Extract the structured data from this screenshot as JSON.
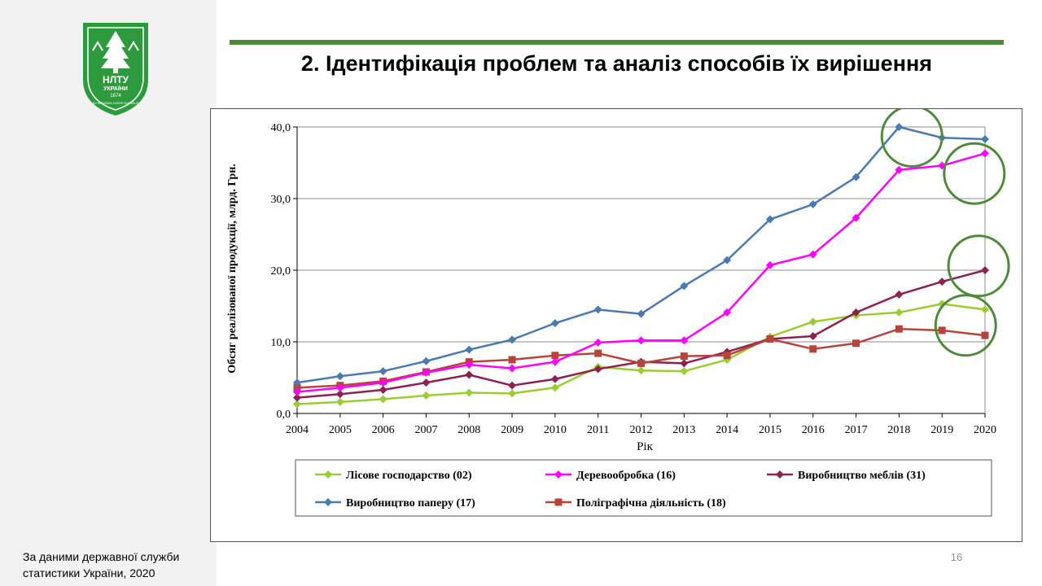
{
  "slide": {
    "title": "2. Ідентифікація проблем та аналіз способів їх вирішення",
    "source_note": "За даними державної служби статистики України, 2020",
    "page_number": "16"
  },
  "logo": {
    "text_top": "НЛТУ",
    "text_mid": "УКРАЇНИ",
    "year": "1874",
    "motto": "AD NATURAM VIVERE DISCIMUS"
  },
  "colors": {
    "accent_green": "#4e8a3a",
    "highlight_circle": "#4e8a3a"
  },
  "chart_data": {
    "type": "line",
    "title": "",
    "xlabel": "Рік",
    "ylabel": "Обсяг реалізованої продукції, млрд. Грн.",
    "ylim": [
      0,
      40
    ],
    "yticks": [
      "0,0",
      "10,0",
      "20,0",
      "30,0",
      "40,0"
    ],
    "ytick_values": [
      0,
      10,
      20,
      30,
      40
    ],
    "grid": true,
    "legend_position": "bottom",
    "categories": [
      "2004",
      "2005",
      "2006",
      "2007",
      "2008",
      "2009",
      "2010",
      "2011",
      "2012",
      "2013",
      "2014",
      "2015",
      "2016",
      "2017",
      "2018",
      "2019",
      "2020"
    ],
    "series": [
      {
        "name": "Лісове господарство (02)",
        "color": "#9acd32",
        "marker": "diamond",
        "values": [
          1.3,
          1.6,
          2.0,
          2.5,
          2.9,
          2.8,
          3.6,
          6.5,
          6.0,
          5.9,
          7.5,
          10.7,
          12.8,
          13.7,
          14.1,
          15.3,
          14.5
        ]
      },
      {
        "name": "Деревообробка (16)",
        "color": "#ff00ff",
        "marker": "diamond",
        "values": [
          3.0,
          3.6,
          4.3,
          5.7,
          6.8,
          6.3,
          7.2,
          9.9,
          10.2,
          10.2,
          14.1,
          20.7,
          22.2,
          27.3,
          34.0,
          34.6,
          36.3
        ]
      },
      {
        "name": "Виробництво меблів (31)",
        "color": "#8b2252",
        "marker": "diamond",
        "values": [
          2.2,
          2.7,
          3.3,
          4.3,
          5.4,
          3.9,
          4.8,
          6.2,
          7.2,
          7.0,
          8.6,
          10.4,
          10.8,
          14.1,
          16.6,
          18.4,
          20.0
        ]
      },
      {
        "name": "Виробництво паперу (17)",
        "color": "#4a7ab0",
        "marker": "diamond",
        "values": [
          4.3,
          5.2,
          5.9,
          7.3,
          8.9,
          10.3,
          12.6,
          14.5,
          13.9,
          17.8,
          21.4,
          27.1,
          29.2,
          33.0,
          40.0,
          38.5,
          38.3
        ]
      },
      {
        "name": "Поліграфічна діяльність (18)",
        "color": "#b5443a",
        "marker": "square",
        "values": [
          3.6,
          3.9,
          4.5,
          5.8,
          7.2,
          7.5,
          8.1,
          8.4,
          7.0,
          8.0,
          8.1,
          10.4,
          9.0,
          9.8,
          11.8,
          11.6,
          10.9
        ]
      }
    ]
  }
}
